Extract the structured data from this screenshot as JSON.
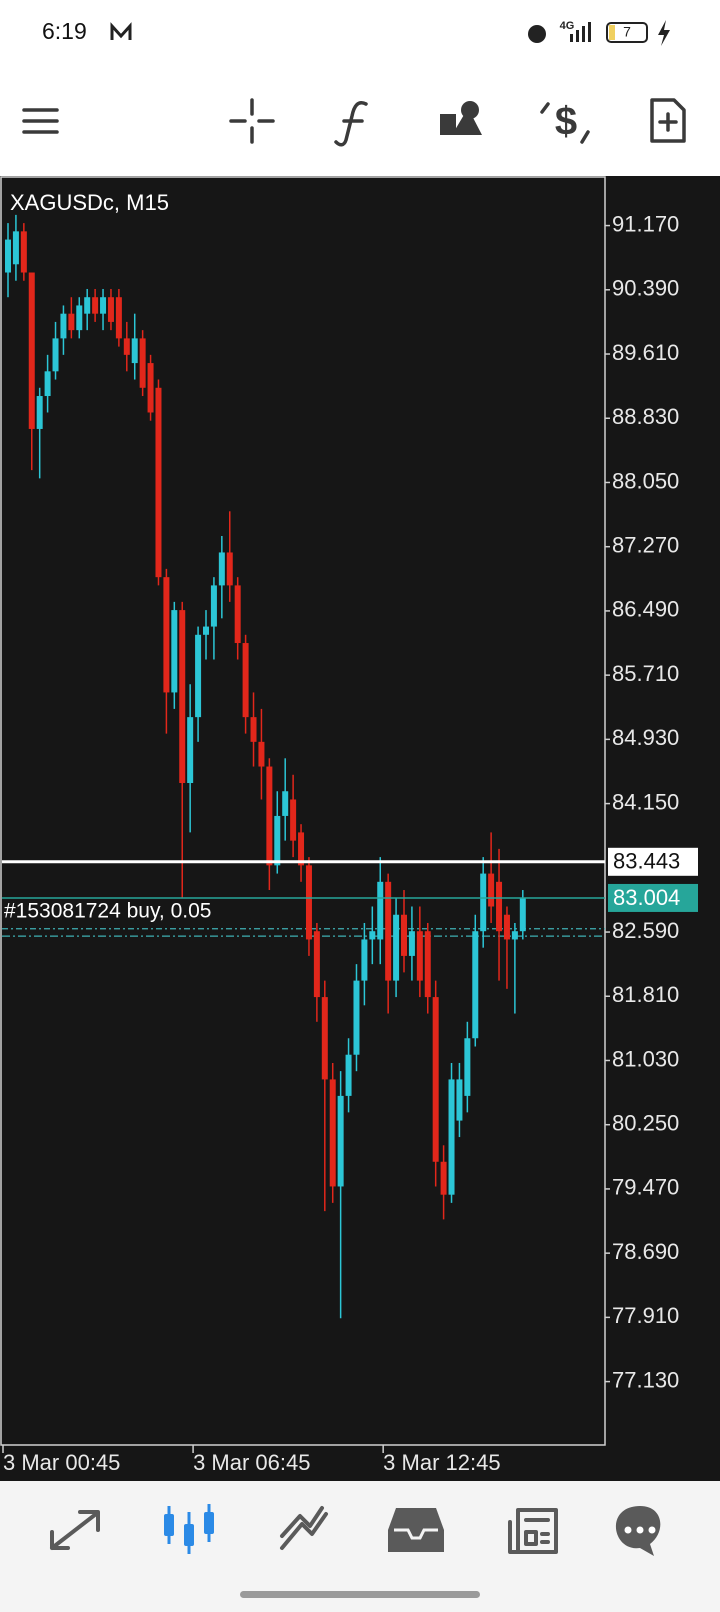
{
  "status_bar": {
    "time": "6:19",
    "network": "4G",
    "battery": "7"
  },
  "chart_data": {
    "type": "candlestick",
    "title": "XAGUSDc, M15",
    "categories": [
      "3 Mar 00:45",
      null,
      null,
      null,
      null,
      null,
      null,
      null,
      null,
      null,
      null,
      null,
      null,
      null,
      null,
      null,
      null,
      null,
      null,
      null,
      null,
      null,
      null,
      null,
      "3 Mar 06:45",
      null,
      null,
      null,
      null,
      null,
      null,
      null,
      null,
      null,
      null,
      null,
      null,
      null,
      null,
      null,
      null,
      null,
      null,
      null,
      null,
      null,
      null,
      null,
      "3 Mar 12:45",
      null,
      null,
      null,
      null,
      null,
      null,
      null,
      null,
      null,
      null,
      null,
      null,
      null,
      null,
      null,
      null,
      null
    ],
    "open": [
      90.6,
      90.7,
      91.1,
      90.6,
      88.7,
      89.1,
      89.4,
      89.8,
      90.1,
      89.9,
      90.1,
      90.3,
      90.1,
      90.3,
      90.3,
      89.8,
      89.5,
      89.8,
      89.5,
      89.2,
      86.9,
      85.5,
      86.5,
      84.4,
      85.2,
      86.2,
      86.3,
      86.8,
      87.2,
      86.8,
      86.1,
      85.2,
      84.9,
      84.6,
      83.4,
      84.0,
      84.2,
      83.8,
      83.4,
      82.6,
      81.8,
      80.8,
      79.5,
      80.6,
      81.1,
      82.0,
      82.5,
      82.5,
      83.2,
      82.0,
      82.8,
      82.3,
      82.6,
      82.6,
      81.8,
      79.8,
      79.4,
      80.3,
      80.6,
      81.3,
      82.6,
      83.3,
      83.2,
      82.8,
      82.5,
      82.6
    ],
    "high": [
      91.2,
      91.3,
      91.2,
      90.6,
      89.2,
      89.6,
      90.0,
      90.2,
      90.3,
      90.3,
      90.4,
      90.4,
      90.4,
      90.4,
      90.4,
      90.0,
      90.1,
      89.9,
      89.6,
      89.3,
      87.0,
      86.6,
      86.6,
      85.6,
      86.3,
      86.5,
      86.9,
      87.4,
      87.7,
      86.9,
      86.2,
      85.5,
      85.3,
      84.7,
      84.3,
      84.7,
      84.5,
      83.9,
      83.5,
      82.7,
      82.0,
      81.0,
      80.9,
      81.3,
      82.2,
      82.7,
      82.9,
      83.5,
      83.3,
      83.0,
      83.1,
      82.9,
      82.9,
      82.7,
      82.0,
      80.0,
      81.0,
      81.0,
      81.5,
      82.8,
      83.5,
      83.8,
      83.6,
      82.9,
      82.7,
      83.1
    ],
    "low": [
      90.3,
      90.5,
      90.5,
      88.2,
      88.1,
      88.9,
      89.3,
      89.6,
      89.8,
      89.8,
      89.9,
      90.0,
      89.9,
      89.9,
      89.7,
      89.4,
      89.3,
      89.1,
      88.8,
      86.8,
      85.0,
      85.3,
      83.0,
      83.8,
      84.9,
      85.9,
      85.9,
      86.4,
      86.6,
      85.9,
      85.0,
      84.6,
      84.2,
      83.1,
      83.3,
      83.7,
      83.5,
      83.2,
      82.3,
      81.5,
      79.2,
      79.3,
      77.9,
      80.4,
      80.9,
      81.7,
      82.2,
      82.2,
      81.6,
      81.8,
      82.1,
      82.0,
      81.8,
      81.6,
      79.5,
      79.1,
      79.3,
      80.1,
      80.4,
      81.2,
      82.4,
      82.7,
      82.0,
      81.9,
      81.6,
      82.5
    ],
    "close": [
      91.0,
      91.1,
      90.6,
      88.7,
      89.1,
      89.4,
      89.8,
      90.1,
      89.9,
      90.2,
      90.3,
      90.1,
      90.3,
      90.0,
      89.8,
      89.6,
      89.8,
      89.2,
      88.9,
      86.9,
      85.5,
      86.5,
      84.4,
      85.2,
      86.2,
      86.3,
      86.8,
      87.2,
      86.8,
      86.1,
      85.2,
      84.9,
      84.6,
      83.4,
      84.0,
      84.3,
      83.7,
      83.4,
      82.5,
      81.8,
      80.8,
      79.5,
      80.6,
      81.1,
      82.0,
      82.5,
      82.6,
      83.2,
      82.0,
      82.8,
      82.3,
      82.6,
      82.0,
      81.8,
      79.8,
      79.4,
      80.8,
      80.8,
      81.3,
      82.6,
      83.3,
      82.9,
      82.6,
      82.5,
      82.6,
      83.0
    ],
    "up_color": "#2cc6d6",
    "down_color": "#e2271b",
    "ylim": [
      76.36,
      91.76
    ],
    "yticks": [
      {
        "value": 91.17,
        "label": "91.170"
      },
      {
        "value": 90.39,
        "label": "90.390"
      },
      {
        "value": 89.61,
        "label": "89.610"
      },
      {
        "value": 88.83,
        "label": "88.830"
      },
      {
        "value": 88.05,
        "label": "88.050"
      },
      {
        "value": 87.27,
        "label": "87.270"
      },
      {
        "value": 86.49,
        "label": "86.490"
      },
      {
        "value": 85.71,
        "label": "85.710"
      },
      {
        "value": 84.93,
        "label": "84.930"
      },
      {
        "value": 84.15,
        "label": "84.150"
      },
      {
        "value": 82.59,
        "label": "82.590"
      },
      {
        "value": 81.81,
        "label": "81.810"
      },
      {
        "value": 81.03,
        "label": "81.030"
      },
      {
        "value": 80.25,
        "label": "80.250"
      },
      {
        "value": 79.47,
        "label": "79.470"
      },
      {
        "value": 78.69,
        "label": "78.690"
      },
      {
        "value": 77.91,
        "label": "77.910"
      },
      {
        "value": 77.13,
        "label": "77.130"
      }
    ],
    "price_lines": [
      {
        "value": 83.443,
        "color": "#ffffff"
      },
      {
        "value": 83.004,
        "color": "#26a69a"
      }
    ],
    "order_lines": [
      {
        "label": "#153081724 buy, 0.05",
        "value": 82.63
      },
      {
        "value": 82.54
      }
    ]
  }
}
